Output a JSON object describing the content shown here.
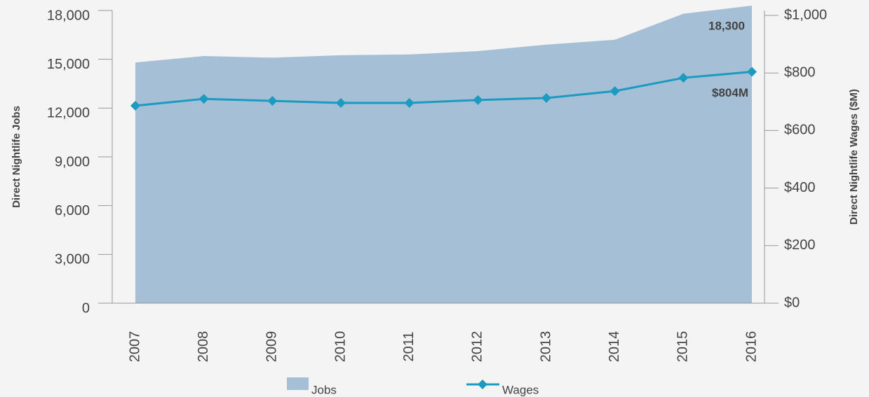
{
  "chart_data": {
    "type": "area-line",
    "categories": [
      "2007",
      "2008",
      "2009",
      "2010",
      "2011",
      "2012",
      "2013",
      "2014",
      "2015",
      "2016"
    ],
    "series": [
      {
        "name": "Jobs",
        "color": "#a4bfd6",
        "values": [
          14800,
          15200,
          15100,
          15250,
          15300,
          15500,
          15900,
          16200,
          17800,
          18300
        ],
        "value_labels": [
          null,
          null,
          null,
          null,
          null,
          null,
          null,
          null,
          null,
          "18,300"
        ]
      },
      {
        "name": "Wages",
        "color": "#1b9bbf",
        "axis": "y2",
        "values": [
          686,
          710,
          703,
          696,
          696,
          706,
          713,
          737,
          783,
          804
        ],
        "value_labels": [
          null,
          null,
          null,
          null,
          null,
          null,
          null,
          null,
          null,
          "$804M"
        ]
      }
    ],
    "ylabel": "Direct Nightlife Jobs",
    "y2label": "Direct Nightlife Wages ($M)",
    "ylim": [
      0,
      18000
    ],
    "yticks": [
      0,
      {
        "value": 3000,
        "label": "3,000"
      },
      {
        "value": 6000,
        "label": "6,000"
      },
      {
        "value": 9000,
        "label": "9,000"
      },
      {
        "value": 12000,
        "label": "12,000"
      },
      {
        "value": 15000,
        "label": "15,000"
      },
      {
        "value": 18000,
        "label": "18,000"
      }
    ],
    "y2lim": [
      0,
      1000
    ],
    "y2ticks": [
      {
        "value": 0,
        "label": "$0"
      },
      {
        "value": 200,
        "label": "$200"
      },
      {
        "value": 400,
        "label": "$400"
      },
      {
        "value": 600,
        "label": "$600"
      },
      {
        "value": 800,
        "label": "$800"
      },
      {
        "value": 1000,
        "label": "$1,000"
      }
    ],
    "legend": "bottom"
  }
}
